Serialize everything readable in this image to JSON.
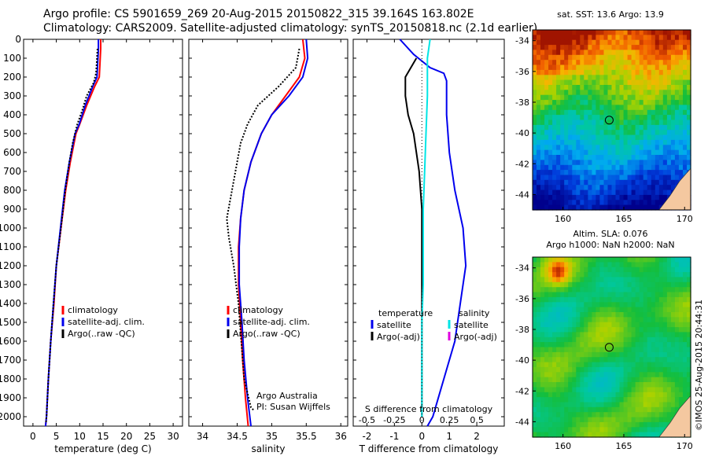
{
  "header": {
    "title_line1": "Argo profile: CS 5901659_269 20-Aug-2015 20150822_315 39.164S 163.802E",
    "title_line2": "Climatology: CARS2009. Satellite-adjusted climatology: synTS_20150818.nc (2.1d earlier)"
  },
  "credit": "©IMOS 25-Aug-2015 20:44:31",
  "colors": {
    "climatology": "#ff0000",
    "satellite": "#0000ee",
    "argo": "#000000",
    "salinity_satellite": "#00e5e5",
    "salinity_argo": "#e000e0",
    "land": "#f4c8a0"
  },
  "chart_data": [
    {
      "type": "line",
      "panel": "temperature",
      "xlabel": "temperature (deg C)",
      "x_ticks": [
        0,
        5,
        10,
        15,
        20,
        25,
        30
      ],
      "xlim": [
        -2,
        32
      ],
      "ylim": [
        2050,
        0
      ],
      "y_ticks": [
        0,
        100,
        200,
        300,
        400,
        500,
        600,
        700,
        800,
        900,
        1000,
        1100,
        1200,
        1300,
        1400,
        1500,
        1600,
        1700,
        1800,
        1900,
        2000
      ],
      "legend": [
        "climatology",
        "satellite-adj. clim.",
        "Argo(..raw -QC)"
      ],
      "series": [
        {
          "name": "climatology",
          "color": "#ff0000",
          "points": [
            [
              14.5,
              0
            ],
            [
              14.5,
              50
            ],
            [
              14.4,
              100
            ],
            [
              14.2,
              200
            ],
            [
              13.2,
              250
            ],
            [
              11.5,
              350
            ],
            [
              10.0,
              450
            ],
            [
              9.2,
              500
            ],
            [
              8.0,
              650
            ],
            [
              7.0,
              800
            ],
            [
              6.0,
              1000
            ],
            [
              5.0,
              1200
            ],
            [
              4.5,
              1400
            ],
            [
              3.8,
              1600
            ],
            [
              3.3,
              1800
            ],
            [
              2.9,
              2000
            ],
            [
              2.7,
              2050
            ]
          ]
        },
        {
          "name": "satellite-adj. clim.",
          "color": "#0000ee",
          "points": [
            [
              14.0,
              0
            ],
            [
              14.0,
              50
            ],
            [
              13.9,
              100
            ],
            [
              13.7,
              200
            ],
            [
              12.8,
              250
            ],
            [
              11.2,
              350
            ],
            [
              9.9,
              450
            ],
            [
              9.0,
              500
            ],
            [
              7.8,
              650
            ],
            [
              6.8,
              800
            ],
            [
              5.9,
              1000
            ],
            [
              5.0,
              1200
            ],
            [
              4.4,
              1400
            ],
            [
              3.8,
              1600
            ],
            [
              3.3,
              1800
            ],
            [
              2.9,
              2000
            ],
            [
              2.7,
              2050
            ]
          ]
        },
        {
          "name": "Argo(..raw -QC)",
          "color": "#000000",
          "dotted": true,
          "points": [
            [
              13.8,
              50
            ],
            [
              13.7,
              100
            ],
            [
              13.5,
              180
            ],
            [
              13.0,
              230
            ],
            [
              11.5,
              300
            ],
            [
              10.5,
              380
            ],
            [
              9.5,
              450
            ],
            [
              8.5,
              550
            ],
            [
              7.8,
              650
            ],
            [
              6.9,
              800
            ],
            [
              6.0,
              1000
            ],
            [
              5.0,
              1200
            ],
            [
              4.4,
              1400
            ],
            [
              3.8,
              1600
            ],
            [
              3.3,
              1800
            ],
            [
              2.9,
              2000
            ],
            [
              2.8,
              2030
            ]
          ]
        }
      ]
    },
    {
      "type": "line",
      "panel": "salinity",
      "xlabel": "salinity",
      "x_ticks": [
        34,
        34.5,
        35,
        35.5,
        36
      ],
      "xlim": [
        33.8,
        36.1
      ],
      "ylim": [
        2050,
        0
      ],
      "legend": [
        "climatology",
        "satellite-adj. clim.",
        "Argo(..raw -QC)"
      ],
      "annotations": [
        "Argo Australia",
        "PI: Susan Wijffels"
      ],
      "series": [
        {
          "name": "climatology",
          "color": "#ff0000",
          "points": [
            [
              35.45,
              0
            ],
            [
              35.48,
              100
            ],
            [
              35.4,
              200
            ],
            [
              35.2,
              300
            ],
            [
              35.0,
              400
            ],
            [
              34.85,
              500
            ],
            [
              34.7,
              650
            ],
            [
              34.6,
              800
            ],
            [
              34.55,
              950
            ],
            [
              34.52,
              1100
            ],
            [
              34.52,
              1300
            ],
            [
              34.55,
              1500
            ],
            [
              34.58,
              1700
            ],
            [
              34.62,
              1900
            ],
            [
              34.66,
              2050
            ]
          ]
        },
        {
          "name": "satellite-adj. clim.",
          "color": "#0000ee",
          "points": [
            [
              35.5,
              0
            ],
            [
              35.52,
              100
            ],
            [
              35.45,
              200
            ],
            [
              35.25,
              300
            ],
            [
              35.0,
              400
            ],
            [
              34.85,
              500
            ],
            [
              34.7,
              650
            ],
            [
              34.6,
              800
            ],
            [
              34.55,
              950
            ],
            [
              34.53,
              1100
            ],
            [
              34.53,
              1300
            ],
            [
              34.57,
              1500
            ],
            [
              34.6,
              1700
            ],
            [
              34.65,
              1900
            ],
            [
              34.7,
              2050
            ]
          ]
        },
        {
          "name": "Argo(..raw -QC)",
          "color": "#000000",
          "dotted": true,
          "points": [
            [
              35.4,
              50
            ],
            [
              35.35,
              150
            ],
            [
              35.1,
              250
            ],
            [
              34.8,
              350
            ],
            [
              34.65,
              450
            ],
            [
              34.55,
              550
            ],
            [
              34.5,
              650
            ],
            [
              34.45,
              750
            ],
            [
              34.4,
              850
            ],
            [
              34.35,
              950
            ],
            [
              34.38,
              1050
            ],
            [
              34.45,
              1200
            ],
            [
              34.52,
              1400
            ],
            [
              34.56,
              1600
            ],
            [
              34.6,
              1800
            ],
            [
              34.7,
              1950
            ],
            [
              34.75,
              1970
            ]
          ]
        }
      ]
    },
    {
      "type": "line",
      "panel": "difference",
      "xlabel": "T difference from climatology",
      "x_ticks": [
        -2,
        -1,
        0,
        1,
        2
      ],
      "xlabel_top": "S difference from climatology",
      "x_ticks_top": [
        "-0.5",
        "-0.25",
        "0",
        "0.25",
        "0.5"
      ],
      "xlim": [
        -2.5,
        3.0
      ],
      "ylim": [
        2050,
        0
      ],
      "legend_left": {
        "title": "temperature",
        "entries": [
          "satellite",
          "Argo(-adj)"
        ]
      },
      "legend_right": {
        "title": "salinity",
        "entries": [
          "satellite",
          "Argo(-adj)"
        ]
      },
      "series": [
        {
          "name": "temperature satellite",
          "color": "#0000ee",
          "points": [
            [
              -0.8,
              0
            ],
            [
              -0.3,
              80
            ],
            [
              0.3,
              150
            ],
            [
              0.8,
              180
            ],
            [
              0.9,
              220
            ],
            [
              0.9,
              400
            ],
            [
              1.0,
              600
            ],
            [
              1.2,
              800
            ],
            [
              1.5,
              1000
            ],
            [
              1.6,
              1200
            ],
            [
              1.4,
              1400
            ],
            [
              1.2,
              1600
            ],
            [
              0.8,
              1800
            ],
            [
              0.4,
              2000
            ],
            [
              0.2,
              2050
            ]
          ]
        },
        {
          "name": "temperature Argo(-adj)",
          "color": "#000000",
          "points": [
            [
              -0.2,
              100
            ],
            [
              -0.6,
              200
            ],
            [
              -0.6,
              300
            ],
            [
              -0.5,
              400
            ],
            [
              -0.3,
              500
            ],
            [
              -0.1,
              700
            ],
            [
              0.0,
              900
            ],
            [
              0.0,
              1100
            ],
            [
              0.0,
              1400
            ],
            [
              0.0,
              1700
            ],
            [
              0.0,
              2000
            ]
          ]
        },
        {
          "name": "salinity satellite",
          "color": "#00e5e5",
          "points": [
            [
              0.3,
              0
            ],
            [
              0.2,
              100
            ],
            [
              0.2,
              300
            ],
            [
              0.15,
              500
            ],
            [
              0.1,
              700
            ],
            [
              0.05,
              900
            ],
            [
              0.05,
              1100
            ],
            [
              0.05,
              1300
            ],
            [
              0.0,
              1500
            ],
            [
              0.0,
              1700
            ],
            [
              0.0,
              2000
            ]
          ]
        }
      ]
    },
    {
      "type": "heatmap",
      "panel": "sst_map",
      "title": "sat. SST: 13.6 Argo: 13.9",
      "x_ticks": [
        160,
        165,
        170
      ],
      "y_ticks": [
        -34,
        -36,
        -38,
        -40,
        -42,
        -44
      ],
      "xlim": [
        157.5,
        170.5
      ],
      "ylim": [
        -45,
        -33.3
      ],
      "marker": {
        "lon": 163.802,
        "lat": -39.164
      }
    },
    {
      "type": "heatmap",
      "panel": "sla_map",
      "title_lines": [
        "Altim. SLA: 0.076",
        "Argo h1000: NaN h2000: NaN"
      ],
      "x_ticks": [
        160,
        165,
        170
      ],
      "y_ticks": [
        -34,
        -36,
        -38,
        -40,
        -42,
        -44
      ],
      "xlim": [
        157.5,
        170.5
      ],
      "ylim": [
        -45,
        -33.3
      ],
      "marker": {
        "lon": 163.802,
        "lat": -39.164
      }
    }
  ]
}
